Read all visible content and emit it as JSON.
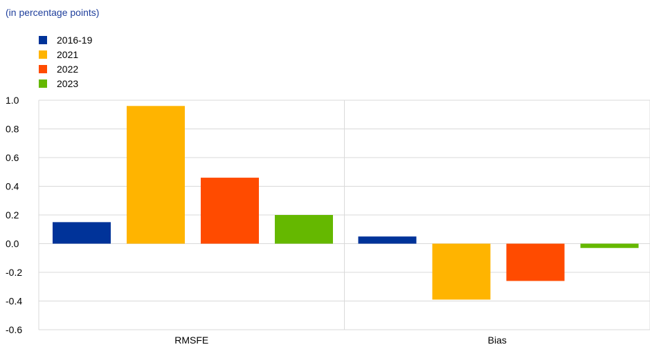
{
  "chart_data": {
    "type": "bar",
    "subtitle": "(in percentage points)",
    "categories": [
      "RMSFE",
      "Bias"
    ],
    "series": [
      {
        "name": "2016-19",
        "color": "#003399",
        "values": [
          0.15,
          0.05
        ]
      },
      {
        "name": "2021",
        "color": "#FFB400",
        "values": [
          0.96,
          -0.39
        ]
      },
      {
        "name": "2022",
        "color": "#FF4B00",
        "values": [
          0.46,
          -0.26
        ]
      },
      {
        "name": "2023",
        "color": "#65B800",
        "values": [
          0.2,
          -0.03
        ]
      }
    ],
    "ylim": [
      -0.6,
      1.0
    ],
    "yticks": [
      "1.0",
      "0.8",
      "0.6",
      "0.4",
      "0.2",
      "0.0",
      "-0.2",
      "-0.4",
      "-0.6"
    ],
    "grid": true,
    "legend_position": "top-left"
  }
}
